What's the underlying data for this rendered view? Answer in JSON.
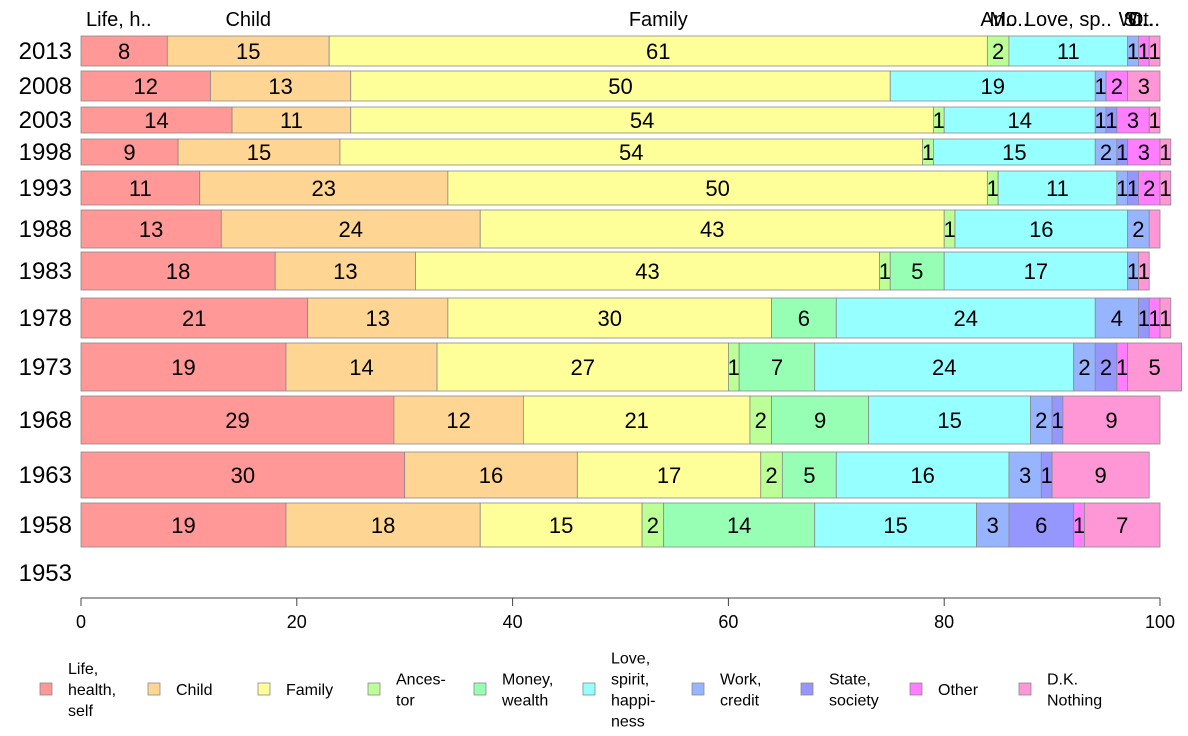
{
  "chart_data": {
    "type": "bar",
    "orientation": "horizontal",
    "stacked": true,
    "title": "",
    "xlabel": "",
    "ylabel": "",
    "xlim": [
      0,
      100
    ],
    "x_ticks": [
      "0",
      "20",
      "40",
      "60",
      "80",
      "100"
    ],
    "categories": [
      "2013",
      "2008",
      "2003",
      "1998",
      "1993",
      "1988",
      "1983",
      "1978",
      "1973",
      "1968",
      "1963",
      "1958",
      "1953"
    ],
    "top_labels": [
      "Life, h..",
      "Child",
      "Family",
      "An..",
      "Mo..",
      "Love, sp..",
      "W..",
      "St..",
      "Ot..",
      "D..."
    ],
    "series": [
      {
        "name": "Life, health, self",
        "legend_lines": [
          "Life,",
          "health,",
          "self"
        ],
        "color": "#ff9896",
        "values": [
          8,
          12,
          14,
          9,
          11,
          13,
          18,
          21,
          19,
          29,
          30,
          19,
          null
        ],
        "labels": [
          "8",
          "12",
          "14",
          "9",
          "11",
          "13",
          "18",
          "21",
          "19",
          "29",
          "30",
          "19",
          ""
        ]
      },
      {
        "name": "Child",
        "legend_lines": [
          "Child"
        ],
        "color": "#ffd593",
        "values": [
          15,
          13,
          11,
          15,
          23,
          24,
          13,
          13,
          14,
          12,
          16,
          18,
          null
        ],
        "labels": [
          "15",
          "13",
          "11",
          "15",
          "23",
          "24",
          "13",
          "13",
          "14",
          "12",
          "16",
          "18",
          ""
        ]
      },
      {
        "name": "Family",
        "legend_lines": [
          "Family"
        ],
        "color": "#ffff99",
        "values": [
          61,
          50,
          54,
          54,
          50,
          43,
          43,
          30,
          27,
          21,
          17,
          15,
          null
        ],
        "labels": [
          "61",
          "50",
          "54",
          "54",
          "50",
          "43",
          "43",
          "30",
          "27",
          "21",
          "17",
          "15",
          ""
        ]
      },
      {
        "name": "Ancestor",
        "legend_lines": [
          "Ances-",
          "tor"
        ],
        "color": "#bbff96",
        "values": [
          2,
          0,
          1,
          1,
          1,
          1,
          1,
          0,
          1,
          2,
          2,
          2,
          null
        ],
        "labels": [
          "2",
          "",
          "1",
          "1",
          "1",
          "1",
          "1",
          "",
          "1",
          "2",
          "2",
          "2",
          ""
        ]
      },
      {
        "name": "Money, wealth",
        "legend_lines": [
          "Money,",
          "wealth"
        ],
        "color": "#96ffb4",
        "values": [
          0,
          0,
          0,
          0,
          0,
          0,
          5,
          6,
          7,
          9,
          5,
          14,
          null
        ],
        "labels": [
          "",
          "",
          "",
          "",
          "",
          "",
          "5",
          "6",
          "7",
          "9",
          "5",
          "14",
          ""
        ]
      },
      {
        "name": "Love, spirit, happiness",
        "legend_lines": [
          "Love,",
          "spirit,",
          "happi-",
          "ness"
        ],
        "color": "#96ffff",
        "values": [
          11,
          19,
          14,
          15,
          11,
          16,
          17,
          24,
          24,
          15,
          16,
          15,
          null
        ],
        "labels": [
          "11",
          "19",
          "14",
          "15",
          "11",
          "16",
          "17",
          "24",
          "24",
          "15",
          "16",
          "15",
          ""
        ]
      },
      {
        "name": "Work, credit",
        "legend_lines": [
          "Work,",
          "credit"
        ],
        "color": "#96b4ff",
        "values": [
          1,
          1,
          1,
          2,
          1,
          2,
          1,
          4,
          2,
          2,
          3,
          3,
          null
        ],
        "labels": [
          "1",
          "1",
          "1",
          "2",
          "1",
          "2",
          "1",
          "4",
          "2",
          "2",
          "3",
          "3",
          ""
        ]
      },
      {
        "name": "State, society",
        "legend_lines": [
          "State,",
          "society"
        ],
        "color": "#9696ff",
        "values": [
          0,
          0,
          1,
          1,
          1,
          0,
          0,
          1,
          2,
          1,
          1,
          6,
          null
        ],
        "labels": [
          "",
          "",
          "1",
          "1",
          "1",
          "",
          "",
          "1",
          "2",
          "1",
          "1",
          "6",
          ""
        ]
      },
      {
        "name": "Other",
        "legend_lines": [
          "Other"
        ],
        "color": "#ff7dff",
        "values": [
          1,
          2,
          3,
          3,
          2,
          0,
          0,
          1,
          1,
          0,
          0,
          1,
          null
        ],
        "labels": [
          "1",
          "2",
          "3",
          "3",
          "2",
          "",
          "",
          "1",
          "1",
          "",
          "",
          "1",
          ""
        ]
      },
      {
        "name": "D.K. Nothing",
        "legend_lines": [
          "D.K.",
          "Nothing"
        ],
        "color": "#ff96d6",
        "values": [
          1,
          3,
          1,
          1,
          1,
          1,
          1,
          1,
          5,
          9,
          9,
          7,
          null
        ],
        "labels": [
          "1",
          "3",
          "1",
          "1",
          "1",
          "",
          "1",
          "1",
          "5",
          "9",
          "9",
          "7",
          ""
        ]
      }
    ],
    "legend_position": "bottom",
    "grid": false
  }
}
